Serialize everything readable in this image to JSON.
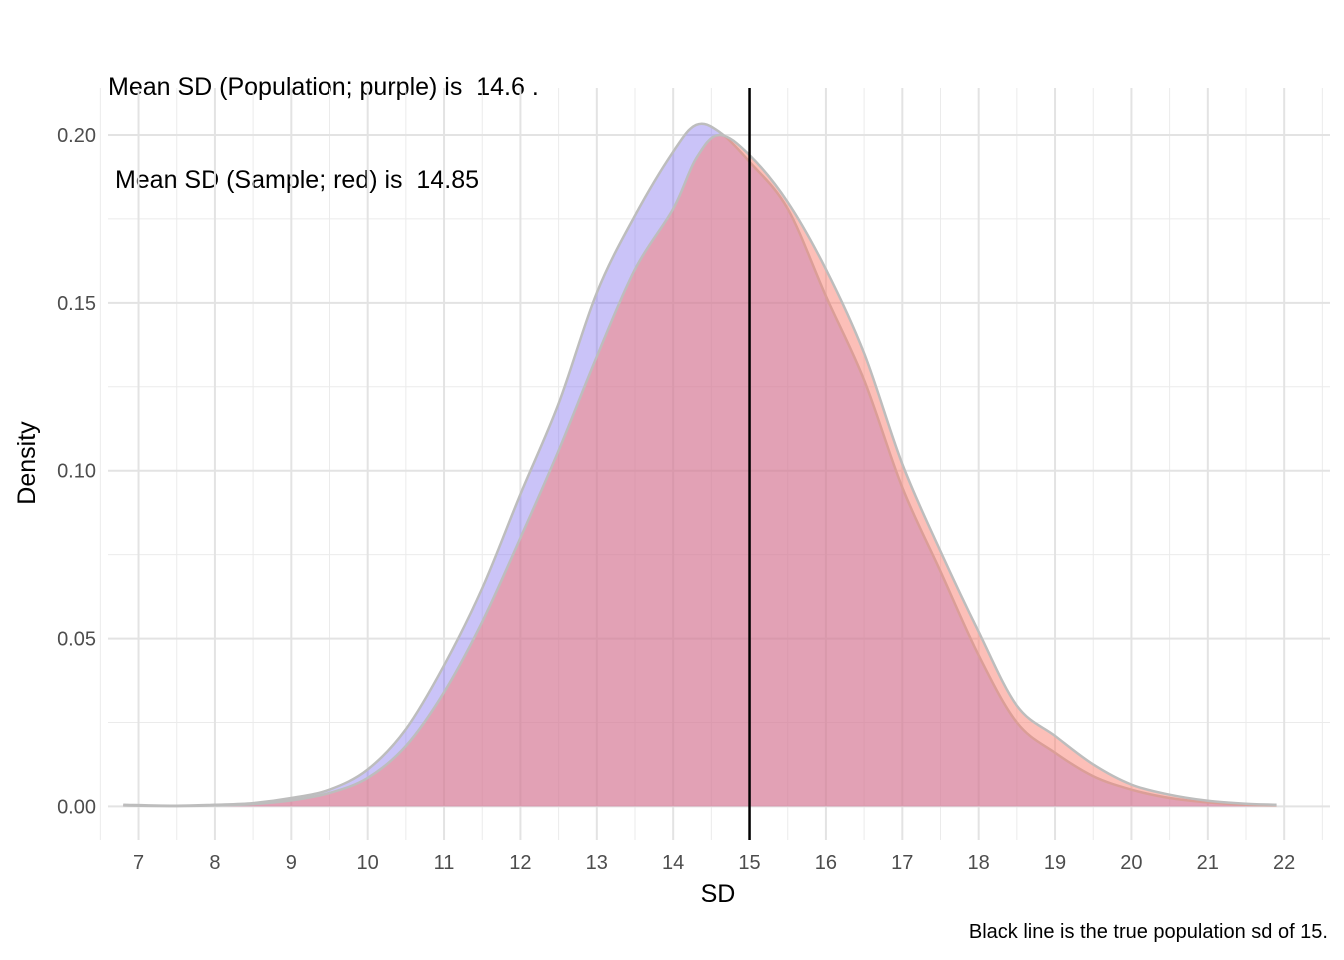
{
  "title_line1": "Mean SD (Population; purple) is  14.6 .",
  "title_line2": " Mean SD (Sample; red) is  14.85",
  "caption": "Black line is the true population sd of 15.",
  "chart_data": {
    "type": "area",
    "xlabel": "SD",
    "ylabel": "Density",
    "xlim": [
      6.6,
      22.6
    ],
    "ylim": [
      -0.01,
      0.214
    ],
    "x_ticks": [
      "7",
      "8",
      "9",
      "10",
      "11",
      "12",
      "13",
      "14",
      "15",
      "16",
      "17",
      "18",
      "19",
      "20",
      "21",
      "22"
    ],
    "y_ticks": [
      "0.00",
      "0.05",
      "0.10",
      "0.15",
      "0.20"
    ],
    "grid": true,
    "reference_line": {
      "x": 15,
      "color": "#000000"
    },
    "series": [
      {
        "key": "population",
        "color": "#7b68ee",
        "opacity": 0.4,
        "x": [
          6.8,
          7.5,
          8,
          8.5,
          9,
          9.5,
          10,
          10.5,
          11,
          11.5,
          12,
          12.5,
          13,
          13.5,
          14,
          14.3,
          14.6,
          15,
          15.5,
          16,
          16.5,
          17,
          17.5,
          18,
          18.5,
          19,
          19.5,
          20,
          20.5,
          21,
          21.5,
          21.9
        ],
        "values": [
          0.0005,
          0.0002,
          0.0005,
          0.001,
          0.0025,
          0.005,
          0.011,
          0.023,
          0.042,
          0.065,
          0.093,
          0.12,
          0.153,
          0.176,
          0.195,
          0.203,
          0.201,
          0.192,
          0.178,
          0.152,
          0.127,
          0.095,
          0.07,
          0.045,
          0.025,
          0.016,
          0.009,
          0.005,
          0.0025,
          0.0012,
          0.0005,
          0.0003
        ]
      },
      {
        "key": "sample",
        "color": "#fa8072",
        "opacity": 0.5,
        "x": [
          6.8,
          7.5,
          8,
          8.5,
          9,
          9.5,
          10,
          10.5,
          11,
          11.5,
          12,
          12.5,
          13,
          13.5,
          14,
          14.3,
          14.6,
          15,
          15.5,
          16,
          16.5,
          17,
          17.5,
          18,
          18.5,
          19,
          19.5,
          20,
          20.5,
          21,
          21.5,
          21.9
        ],
        "values": [
          0.0003,
          0.0001,
          0.0003,
          0.0007,
          0.0018,
          0.004,
          0.0085,
          0.018,
          0.034,
          0.055,
          0.08,
          0.106,
          0.134,
          0.16,
          0.178,
          0.193,
          0.2,
          0.194,
          0.18,
          0.16,
          0.135,
          0.102,
          0.076,
          0.052,
          0.03,
          0.021,
          0.0125,
          0.0065,
          0.0035,
          0.0017,
          0.0008,
          0.0005
        ]
      }
    ]
  }
}
